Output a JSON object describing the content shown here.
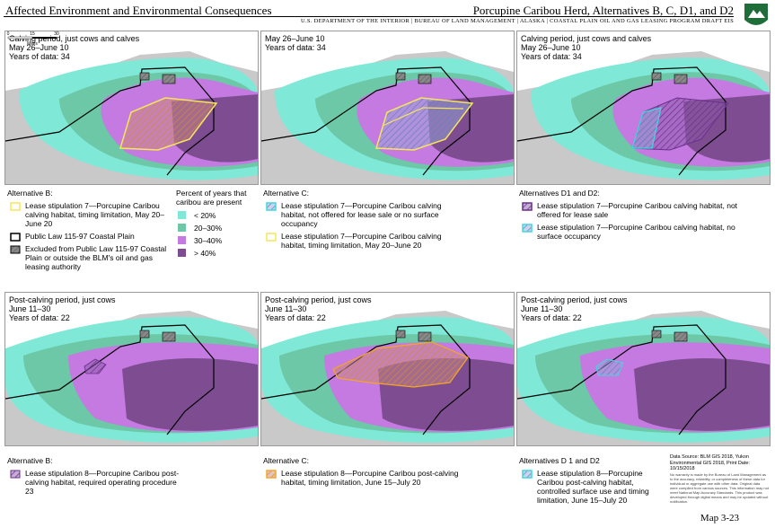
{
  "header": {
    "section": "Affected Environment and Environmental Consequences",
    "title": "Porcupine Caribou Herd, Alternatives B, C, D1, and D2",
    "agency": "U.S. DEPARTMENT OF THE INTERIOR | BUREAU OF LAND MANAGEMENT | ALASKA | COASTAL PLAIN OIL AND GAS LEASING PROGRAM DRAFT EIS"
  },
  "panels": [
    {
      "lines": [
        "Calving period, just cows and calves",
        "May 26–June 10",
        "Years of data: 34"
      ]
    },
    {
      "lines": [
        "May 26–June 10",
        "Years of data: 34"
      ]
    },
    {
      "lines": [
        "Calving period, just cows and calves",
        "May 26–June 10",
        "Years of data: 34"
      ]
    },
    {
      "lines": [
        "Post-calving period, just cows",
        "June 11–30",
        "Years of data: 22"
      ]
    },
    {
      "lines": [
        "Post-calving period, just cows",
        "June 11–30",
        "Years of data: 22"
      ]
    },
    {
      "lines": [
        "Post-calving period, just cows",
        "June 11–30",
        "Years of data: 22"
      ]
    }
  ],
  "scale_bar": {
    "ticks": [
      "0",
      "15",
      "30"
    ],
    "unit": "Miles"
  },
  "legends": [
    {
      "heading": "Alternative B:",
      "items": [
        "Lease stipulation 7—Porcupine Caribou calving habitat, timing limitation, May 20–June 20",
        "Public Law 115-97 Coastal Plain",
        "Excluded from Public Law 115-97 Coastal Plain or outside the BLM's oil and gas leasing authority"
      ]
    },
    {
      "heading": "Alternative C:",
      "items": [
        "Lease stipulation 7—Porcupine Caribou calving habitat, not offered for lease sale or no surface occupancy",
        "Lease stipulation 7—Porcupine Caribou calving habitat, timing limitation, May 20–June 20"
      ]
    },
    {
      "heading": "Alternatives D1 and D2:",
      "items": [
        "Lease stipulation 7—Porcupine Caribou calving habitat, not offered for lease sale",
        "Lease stipulation 7—Porcupine Caribou calving habitat, no surface occupancy"
      ]
    },
    {
      "heading": "Alternative B:",
      "items": [
        "Lease stipulation 8—Porcupine Caribou post-calving habitat, required operating procedure 23"
      ]
    },
    {
      "heading": "Alternative C:",
      "items": [
        "Lease stipulation 8—Porcupine Caribou post-calving habitat, timing limitation, June 15–July 20"
      ]
    },
    {
      "heading": "Alternatives D 1 and D2",
      "items": [
        "Lease stipulation 8—Porcupine Caribou post-calving habitat, controlled surface use and timing limitation, June 15–July 20"
      ]
    }
  ],
  "percent_legend": {
    "title": "Percent of years that caribou are present",
    "classes": [
      "< 20%",
      "20–30%",
      "30–40%",
      "> 40%"
    ]
  },
  "data_source": "Data Source: BLM GIS 2018, Yukon Environmental GIS 2018, Print Date: 10/15/2018",
  "disclaimer": "No warranty is made by the Bureau of Land Management as to the accuracy, reliability, or completeness of these data for individual or aggregate use with other data. Original data were compiled from various sources. This information may not meet National Map Accuracy Standards. This product was developed through digital means and may be updated without notification.",
  "map_number": "Map 3-23"
}
